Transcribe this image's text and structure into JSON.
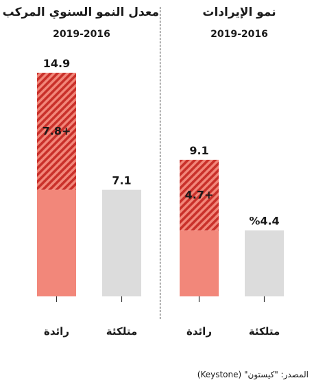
{
  "colors": {
    "leading_base": "#f2877a",
    "leading_gain_bg": "#f2877a",
    "leading_gain_stripe": "#c9302a",
    "owned": "#dcdcdc",
    "axis": "#333333",
    "text": "#1a1a1a"
  },
  "source": "المصدر: \"كيستون\" (Keystone)",
  "chart_data": [
    {
      "type": "bar",
      "title": "معدل النمو السنوي المركب",
      "subtitle": "2019-2016",
      "categories": [
        "رائدة",
        "متلكئة"
      ],
      "series": [
        {
          "values": [
            7.1,
            7.1
          ]
        },
        {
          "values": [
            7.8,
            0
          ]
        }
      ],
      "totals": [
        14.9,
        7.1
      ],
      "total_labels": [
        "14.9",
        "7.1"
      ],
      "gain_labels": [
        "+7.8",
        ""
      ],
      "ylim": [
        0,
        14.9
      ]
    },
    {
      "type": "bar",
      "title": "نمو الإيرادات",
      "subtitle": "2019-2016",
      "categories": [
        "رائدة",
        "متلكئة"
      ],
      "series": [
        {
          "values": [
            4.4,
            4.4
          ]
        },
        {
          "values": [
            4.7,
            0
          ]
        }
      ],
      "totals": [
        9.1,
        4.4
      ],
      "total_labels": [
        "9.1",
        "%4.4"
      ],
      "gain_labels": [
        "+4.7",
        ""
      ],
      "ylim": [
        0,
        14.9
      ]
    }
  ]
}
